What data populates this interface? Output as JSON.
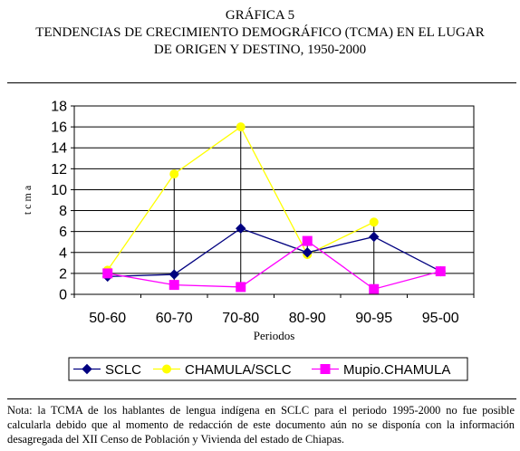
{
  "heading": {
    "line1": "GRÁFICA 5",
    "line2": "TENDENCIAS DE CRECIMIENTO DEMOGRÁFICO (TCMA) EN EL LUGAR",
    "line3": "DE ORIGEN Y DESTINO, 1950-2000"
  },
  "note": "Nota: la TCMA de los hablantes de lengua indígena en SCLC para el periodo 1995-2000 no fue posible calcularla debido que  al momento de redacción de este documento aún no se disponía con la información desagregada del XII Censo de Población y Vivienda del estado de Chiapas.",
  "chart_data": {
    "type": "line",
    "categories": [
      "50-60",
      "60-70",
      "70-80",
      "80-90",
      "90-95",
      "95-00"
    ],
    "xlabel": "Periodos",
    "ylabel": "t c m a",
    "ylim": [
      0,
      18
    ],
    "yticks": [
      0,
      2,
      4,
      6,
      8,
      10,
      12,
      14,
      16,
      18
    ],
    "grid": true,
    "legend_position": "bottom",
    "series": [
      {
        "name": "SCLC",
        "color": "#000080",
        "marker": "diamond",
        "values": [
          1.7,
          1.9,
          6.3,
          4.0,
          5.5,
          2.2
        ]
      },
      {
        "name": "CHAMULA/SCLC",
        "color": "#FFFF00",
        "marker": "circle",
        "values": [
          2.3,
          11.5,
          16.0,
          3.8,
          6.9,
          null
        ]
      },
      {
        "name": "Mupio.CHAMULA",
        "color": "#FF00FF",
        "marker": "square",
        "values": [
          2.0,
          0.9,
          0.7,
          5.1,
          0.5,
          2.2
        ]
      }
    ]
  }
}
